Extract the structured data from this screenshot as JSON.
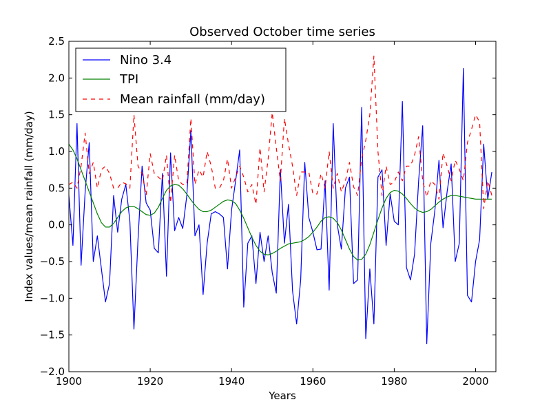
{
  "chart_data": {
    "type": "line",
    "title": "Observed October time series",
    "xlabel": "Years",
    "ylabel": "Index values/mean rainfall (mm/day)",
    "xlim": [
      1900,
      2005
    ],
    "ylim": [
      -2.0,
      2.5
    ],
    "xticks": [
      1900,
      1920,
      1940,
      1960,
      1980,
      2000
    ],
    "xtick_labels": [
      "1900",
      "1920",
      "1940",
      "1960",
      "1980",
      "2000"
    ],
    "yticks": [
      -2.0,
      -1.5,
      -1.0,
      -0.5,
      0.0,
      0.5,
      1.0,
      1.5,
      2.0,
      2.5
    ],
    "ytick_labels": [
      "−2.0",
      "−1.5",
      "−1.0",
      "−0.5",
      "0.0",
      "0.5",
      "1.0",
      "1.5",
      "2.0",
      "2.5"
    ],
    "grid": false,
    "legend_position": "top-left",
    "x": [
      1900,
      1901,
      1902,
      1903,
      1904,
      1905,
      1906,
      1907,
      1908,
      1909,
      1910,
      1911,
      1912,
      1913,
      1914,
      1915,
      1916,
      1917,
      1918,
      1919,
      1920,
      1921,
      1922,
      1923,
      1924,
      1925,
      1926,
      1927,
      1928,
      1929,
      1930,
      1931,
      1932,
      1933,
      1934,
      1935,
      1936,
      1937,
      1938,
      1939,
      1940,
      1941,
      1942,
      1943,
      1944,
      1945,
      1946,
      1947,
      1948,
      1949,
      1950,
      1951,
      1952,
      1953,
      1954,
      1955,
      1956,
      1957,
      1958,
      1959,
      1960,
      1961,
      1962,
      1963,
      1964,
      1965,
      1966,
      1967,
      1968,
      1969,
      1970,
      1971,
      1972,
      1973,
      1974,
      1975,
      1976,
      1977,
      1978,
      1979,
      1980,
      1981,
      1982,
      1983,
      1984,
      1985,
      1986,
      1987,
      1988,
      1989,
      1990,
      1991,
      1992,
      1993,
      1994,
      1995,
      1996,
      1997,
      1998,
      1999,
      2000,
      2001,
      2002,
      2003,
      2004
    ],
    "series": [
      {
        "name": "Nino 3.4",
        "color": "#0000ff",
        "style": "solid",
        "values": [
          0.4,
          -0.28,
          1.38,
          -0.55,
          0.45,
          1.12,
          -0.5,
          -0.15,
          -0.6,
          -1.05,
          -0.8,
          0.4,
          -0.1,
          0.35,
          0.55,
          0.05,
          -1.42,
          -0.2,
          0.8,
          0.3,
          0.2,
          -0.32,
          -0.38,
          0.7,
          -0.7,
          0.98,
          -0.08,
          0.1,
          -0.05,
          0.4,
          1.28,
          -0.15,
          0.0,
          -0.95,
          -0.25,
          0.15,
          0.18,
          0.15,
          0.1,
          -0.6,
          0.2,
          0.6,
          1.02,
          -1.12,
          -0.25,
          -0.15,
          -0.8,
          -0.1,
          -0.5,
          -0.15,
          -0.65,
          -0.93,
          0.75,
          -0.25,
          0.28,
          -0.9,
          -1.35,
          -0.75,
          0.85,
          0.1,
          -0.1,
          -0.34,
          -0.33,
          0.6,
          -0.89,
          1.38,
          0.0,
          -0.33,
          0.5,
          0.65,
          -0.8,
          -0.75,
          1.6,
          -1.55,
          -0.6,
          -1.35,
          0.65,
          0.75,
          -0.28,
          0.42,
          0.05,
          0.0,
          1.68,
          -0.58,
          -0.75,
          -0.4,
          0.6,
          1.35,
          -1.62,
          -0.25,
          0.2,
          0.88,
          -0.04,
          0.45,
          0.83,
          -0.5,
          -0.25,
          2.13,
          -0.96,
          -1.05,
          -0.5,
          -0.2,
          1.1,
          0.35,
          0.72
        ]
      },
      {
        "name": "TPI",
        "color": "#008000",
        "style": "solid",
        "values": [
          1.1,
          1.02,
          0.9,
          0.75,
          0.6,
          0.45,
          0.3,
          0.15,
          0.03,
          -0.03,
          -0.03,
          0.02,
          0.1,
          0.18,
          0.23,
          0.25,
          0.25,
          0.22,
          0.18,
          0.14,
          0.13,
          0.16,
          0.24,
          0.36,
          0.47,
          0.53,
          0.55,
          0.54,
          0.49,
          0.42,
          0.34,
          0.27,
          0.21,
          0.18,
          0.18,
          0.2,
          0.24,
          0.28,
          0.32,
          0.34,
          0.33,
          0.29,
          0.2,
          0.09,
          -0.04,
          -0.17,
          -0.28,
          -0.36,
          -0.4,
          -0.41,
          -0.39,
          -0.36,
          -0.32,
          -0.29,
          -0.26,
          -0.25,
          -0.24,
          -0.23,
          -0.2,
          -0.16,
          -0.1,
          -0.03,
          0.05,
          0.1,
          0.11,
          0.09,
          0.03,
          -0.07,
          -0.2,
          -0.33,
          -0.43,
          -0.48,
          -0.47,
          -0.4,
          -0.27,
          -0.1,
          0.07,
          0.23,
          0.36,
          0.44,
          0.47,
          0.46,
          0.42,
          0.36,
          0.29,
          0.23,
          0.19,
          0.17,
          0.18,
          0.21,
          0.26,
          0.31,
          0.35,
          0.38,
          0.4,
          0.4,
          0.39,
          0.38,
          0.37,
          0.36,
          0.35,
          0.35,
          0.35,
          0.35,
          0.35
        ]
      },
      {
        "name": "Mean rainfall (mm/day)",
        "color": "#ff0000",
        "style": "dashed",
        "values": [
          0.55,
          0.58,
          0.5,
          0.8,
          1.25,
          0.7,
          0.85,
          0.5,
          0.75,
          0.8,
          0.7,
          0.5,
          0.5,
          0.58,
          0.56,
          0.5,
          1.5,
          0.8,
          0.7,
          0.4,
          0.97,
          0.7,
          0.65,
          0.6,
          0.95,
          0.3,
          0.95,
          0.6,
          0.55,
          0.55,
          1.45,
          0.55,
          0.75,
          0.65,
          1.0,
          0.8,
          0.5,
          0.5,
          0.6,
          0.9,
          0.5,
          0.65,
          0.8,
          0.65,
          0.45,
          0.55,
          0.28,
          1.05,
          0.45,
          0.9,
          1.53,
          1.05,
          0.6,
          1.45,
          1.1,
          0.8,
          0.4,
          0.72,
          0.72,
          0.72,
          0.42,
          0.42,
          0.7,
          0.5,
          1.0,
          0.5,
          0.7,
          0.45,
          0.6,
          0.85,
          0.52,
          0.4,
          0.9,
          1.15,
          1.5,
          2.3,
          1.0,
          0.4,
          0.8,
          0.55,
          0.58,
          0.72,
          0.6,
          0.8,
          0.8,
          0.95,
          1.2,
          0.6,
          0.38,
          0.6,
          0.55,
          0.35,
          0.98,
          0.8,
          0.6,
          0.88,
          0.76,
          0.6,
          1.12,
          1.3,
          1.5,
          1.4,
          0.22,
          0.6,
          0.4
        ]
      }
    ]
  }
}
